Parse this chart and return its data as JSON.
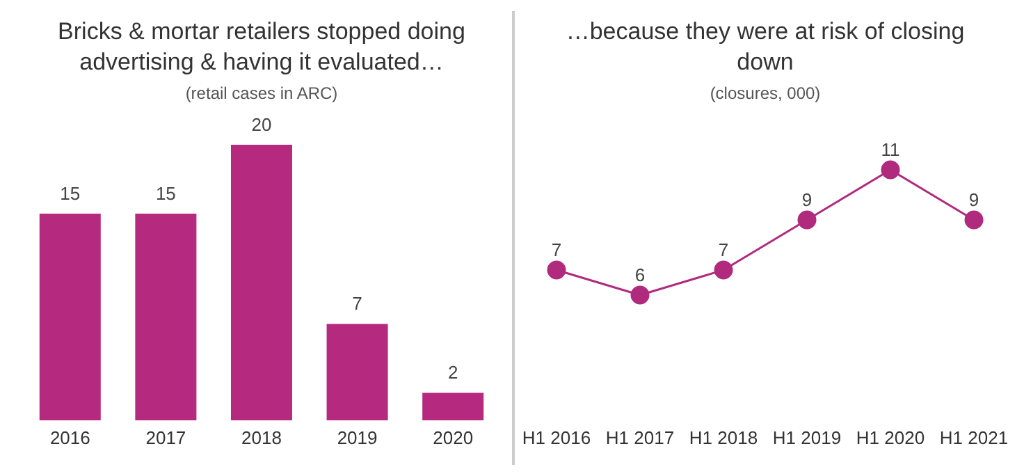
{
  "chart_data": [
    {
      "type": "bar",
      "title": "Bricks & mortar retailers stopped doing advertising & having it evaluated…",
      "subtitle": "(retail cases in ARC)",
      "categories": [
        "2016",
        "2017",
        "2018",
        "2019",
        "2020"
      ],
      "values": [
        15,
        15,
        20,
        7,
        2
      ],
      "color": "#b5297f",
      "data_labels": true,
      "tick_labels": "x",
      "grid": false,
      "legend": false
    },
    {
      "type": "line",
      "title": "…because they were at risk of closing down",
      "subtitle": "(closures, 000)",
      "categories": [
        "H1 2016",
        "H1 2017",
        "H1 2018",
        "H1 2019",
        "H1 2020",
        "H1 2021"
      ],
      "values": [
        7,
        6,
        7,
        9,
        11,
        9
      ],
      "color": "#b02a7e",
      "marker": "circle",
      "data_labels": true,
      "tick_labels": "x",
      "grid": false,
      "legend": false
    }
  ]
}
